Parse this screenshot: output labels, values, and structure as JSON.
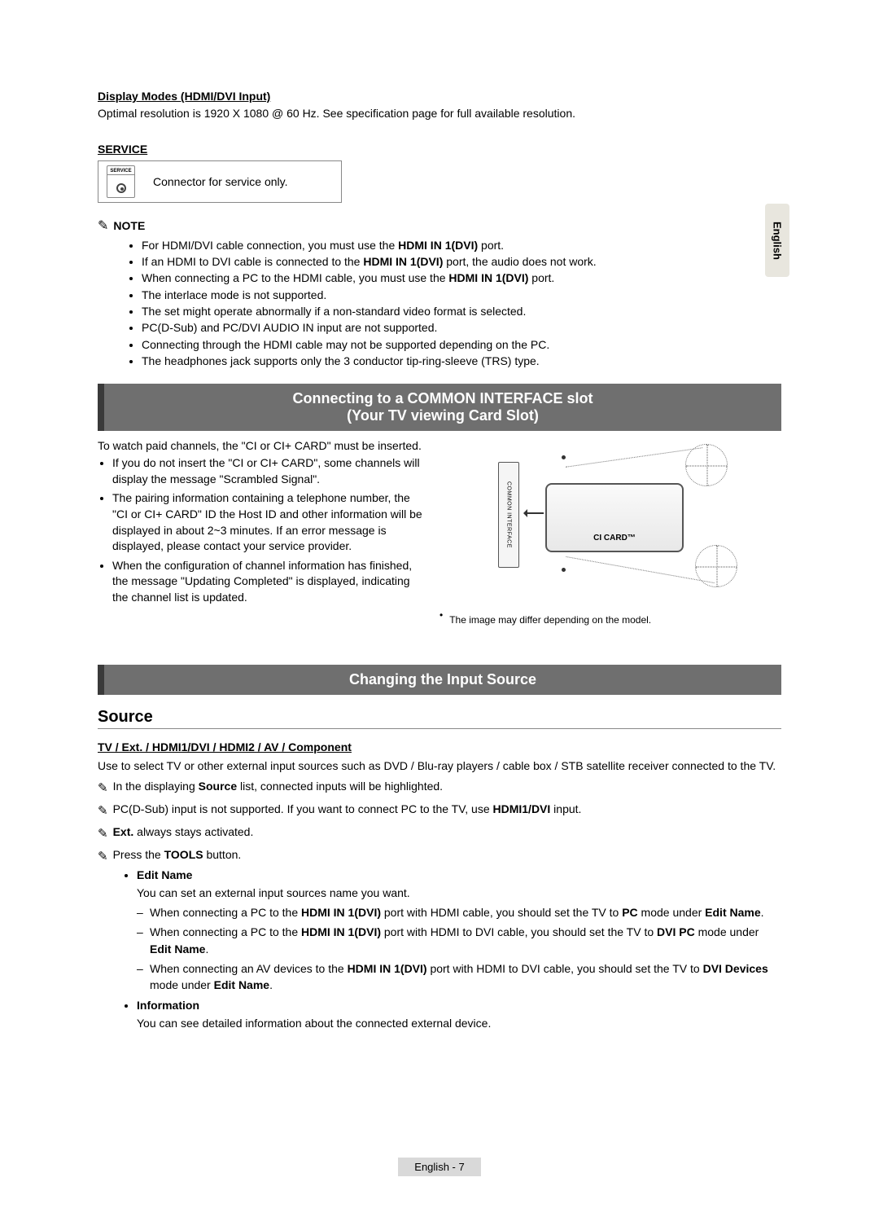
{
  "side_tab": "English",
  "display_modes": {
    "heading": "Display Modes (HDMI/DVI Input)",
    "text": "Optimal resolution is 1920 X 1080 @ 60 Hz. See specification page for full available resolution."
  },
  "service": {
    "heading": "SERVICE",
    "icon_label": "SERVICE",
    "desc": "Connector for service only."
  },
  "note": {
    "label": "NOTE",
    "items": [
      "For HDMI/DVI cable connection, you must use the <b>HDMI IN 1(DVI)</b> port.",
      "If an HDMI to DVI cable is connected to the <b>HDMI IN 1(DVI)</b> port, the audio does not work.",
      "When connecting a PC to the HDMI cable, you must use the <b>HDMI IN 1(DVI)</b> port.",
      "The interlace mode is not supported.",
      "The set might operate abnormally if a non-standard video format is selected.",
      "PC(D-Sub) and PC/DVI AUDIO IN input are not supported.",
      "Connecting through the HDMI cable may not be supported depending on the PC.",
      "The headphones jack supports only the 3 conductor tip-ring-sleeve (TRS) type."
    ]
  },
  "band_ci": {
    "line1": "Connecting to a COMMON INTERFACE slot",
    "line2": "(Your TV viewing Card Slot)"
  },
  "ci": {
    "intro": "To watch paid channels, the \"CI or CI+ CARD\" must be inserted.",
    "items": [
      "If you do not insert the \"CI or CI+ CARD\", some channels will display the message \"Scrambled Signal\".",
      "The pairing information containing a telephone number, the \"CI or CI+ CARD\" ID the Host ID and other information will be displayed in about 2~3 minutes. If an error message is displayed, please contact your service provider.",
      "When the configuration of channel information has finished, the message \"Updating Completed\" is displayed, indicating the channel list is updated."
    ],
    "slot_label": "COMMON INTERFACE",
    "card_label": "CI CARD™",
    "img_note": "The image may differ depending on the model."
  },
  "band_src": "Changing the Input Source",
  "source": {
    "heading": "Source",
    "sub": "TV / Ext. / HDMI1/DVI / HDMI2 / AV / Component",
    "desc": "Use to select TV or other external input sources such as DVD / Blu-ray players / cable box / STB satellite receiver connected to the TV.",
    "tips": [
      "In the displaying <b>Source</b> list, connected inputs will be highlighted.",
      "PC(D-Sub) input is not supported. If you want to connect PC to the TV, use <b>HDMI1/DVI</b> input.",
      "<b>Ext.</b> always stays activated.",
      "Press the <b>TOOLS</b> button."
    ],
    "tools": [
      {
        "title": "Edit Name",
        "desc": "You can set an external input sources name you want.",
        "dashes": [
          "When connecting a PC to the <b>HDMI IN 1(DVI)</b> port with HDMI cable, you should set the TV to <b>PC</b> mode under <b>Edit Name</b>.",
          "When connecting a PC to the <b>HDMI IN 1(DVI)</b> port with HDMI to DVI cable, you should set the TV to <b>DVI PC</b> mode under <b>Edit Name</b>.",
          "When connecting an AV devices to the <b>HDMI IN 1(DVI)</b> port with HDMI to DVI cable, you should set the TV to <b>DVI Devices</b> mode under <b>Edit Name</b>."
        ]
      },
      {
        "title": "Information",
        "desc": "You can see detailed information about the connected external device."
      }
    ]
  },
  "footer": {
    "page": "English - 7"
  }
}
